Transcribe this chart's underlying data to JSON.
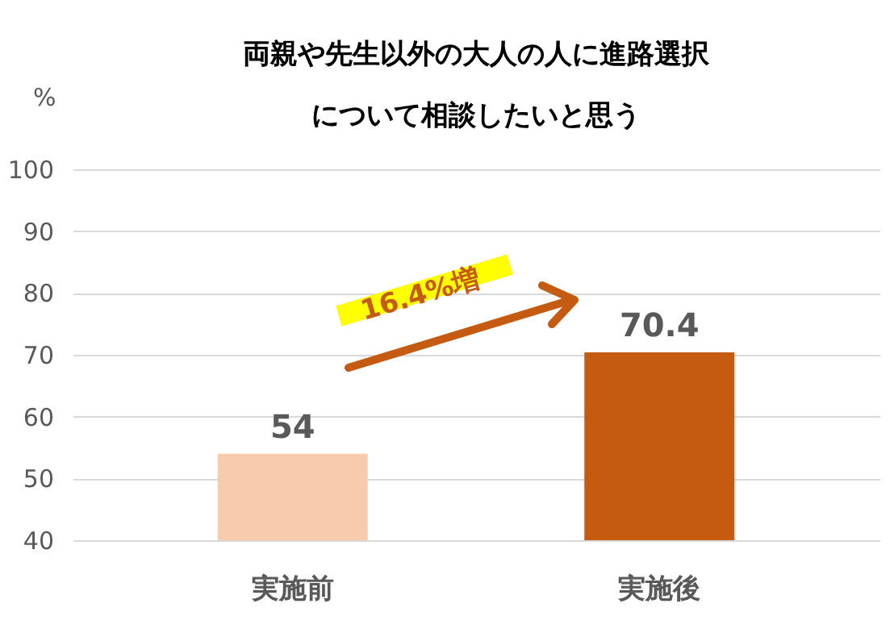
{
  "chart_data": {
    "type": "bar",
    "title": "両親や先生以外の大人の人に進路選択について相談したいと思う",
    "ylabel": "%",
    "categories": [
      "実施前",
      "実施後"
    ],
    "values": [
      54,
      70.4
    ],
    "colors": [
      "#f8cbad",
      "#c55a11"
    ],
    "ylim": [
      40,
      100
    ],
    "yticks": [
      40,
      50,
      60,
      70,
      80,
      90,
      100
    ],
    "grid": "y",
    "data_labels": true,
    "annotations": [
      "16.4%増"
    ]
  }
}
